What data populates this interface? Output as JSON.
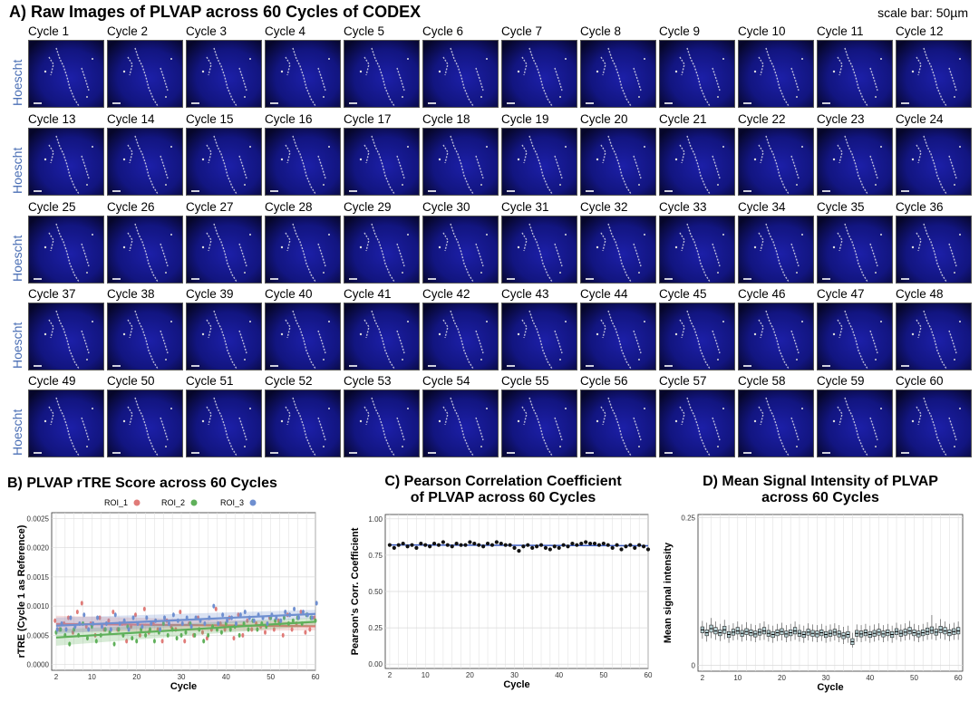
{
  "figure": {
    "panel_a_title": "A) Raw Images of PLVAP across 60 Cycles of CODEX",
    "scale_bar_note": "scale bar: 50µm",
    "row_label": "Hoescht",
    "cycle_label_prefix": "Cycle",
    "cycle_count": 60
  },
  "chart_data": [
    {
      "id": "B",
      "type": "scatter",
      "title": "B)  PLVAP rTRE Score across 60 Cycles",
      "xlabel": "Cycle",
      "ylabel": "rTRE (Cycle 1 as Reference)",
      "xlim": [
        1,
        60
      ],
      "ylim": [
        -0.0001,
        0.0026
      ],
      "xticks": [
        2,
        10,
        20,
        30,
        40,
        50,
        60
      ],
      "yticks": [
        0.0,
        0.0005,
        0.001,
        0.0015,
        0.002,
        0.0025
      ],
      "ytick_labels": [
        "0.0000",
        "0.0005",
        "0.0010",
        "0.0015",
        "0.0020",
        "0.0025"
      ],
      "grid": true,
      "legend_position": "top",
      "colors": {
        "ROI_1": "#e07b78",
        "ROI_2": "#5fb05a",
        "ROI_3": "#6f8fd0"
      },
      "series": [
        {
          "name": "ROI_1",
          "x": [
            2,
            3,
            4,
            5,
            6,
            7,
            8,
            9,
            10,
            11,
            12,
            13,
            14,
            15,
            16,
            17,
            18,
            19,
            20,
            21,
            22,
            23,
            24,
            25,
            26,
            27,
            28,
            29,
            30,
            31,
            32,
            33,
            34,
            35,
            36,
            37,
            38,
            39,
            40,
            41,
            42,
            43,
            44,
            45,
            46,
            47,
            48,
            49,
            50,
            51,
            52,
            53,
            54,
            55,
            56,
            57,
            58,
            59,
            60
          ],
          "y": [
            0.00075,
            0.0006,
            0.0007,
            0.0008,
            0.00055,
            0.0009,
            0.00105,
            0.00065,
            0.0007,
            0.0005,
            0.0008,
            0.0006,
            0.00075,
            0.0009,
            0.0006,
            0.0007,
            0.0004,
            0.00065,
            0.00085,
            0.0005,
            0.00095,
            0.00055,
            0.0007,
            0.0006,
            0.0004,
            0.00075,
            0.00065,
            0.0006,
            0.0009,
            0.0004,
            0.0007,
            0.0005,
            0.0008,
            0.00055,
            0.00045,
            0.0006,
            0.00095,
            0.0007,
            0.0006,
            0.0008,
            0.00045,
            0.00085,
            0.0005,
            0.00075,
            0.0006,
            0.0007,
            0.00065,
            0.00055,
            0.0008,
            0.0006,
            0.00075,
            0.0005,
            0.00085,
            0.0006,
            0.0007,
            0.0009,
            0.00055,
            0.0006,
            0.0008
          ]
        },
        {
          "name": "ROI_2",
          "x": [
            2,
            3,
            4,
            5,
            6,
            7,
            8,
            9,
            10,
            11,
            12,
            13,
            14,
            15,
            16,
            17,
            18,
            19,
            20,
            21,
            22,
            23,
            24,
            25,
            26,
            27,
            28,
            29,
            30,
            31,
            32,
            33,
            34,
            35,
            36,
            37,
            38,
            39,
            40,
            41,
            42,
            43,
            44,
            45,
            46,
            47,
            48,
            49,
            50,
            51,
            52,
            53,
            54,
            55,
            56,
            57,
            58,
            59,
            60
          ],
          "y": [
            0.00055,
            0.0006,
            0.0005,
            0.00035,
            0.0006,
            0.0005,
            0.0007,
            0.00045,
            0.00065,
            0.0004,
            0.0005,
            0.0006,
            0.00055,
            0.00035,
            0.0006,
            0.0005,
            0.00065,
            0.00045,
            0.0004,
            0.0006,
            0.0005,
            0.0006,
            0.0004,
            0.00055,
            0.0007,
            0.0005,
            0.0006,
            0.00045,
            0.0005,
            0.00055,
            0.0007,
            0.0005,
            0.0006,
            0.0004,
            0.0005,
            0.00065,
            0.0006,
            0.00055,
            0.0007,
            0.0006,
            0.00065,
            0.0005,
            0.0007,
            0.0006,
            0.00075,
            0.0006,
            0.0007,
            0.00065,
            0.0008,
            0.00075,
            0.0007,
            0.0008,
            0.0007,
            0.00075,
            0.0008,
            0.0007,
            0.00085,
            0.0008,
            0.00075
          ]
        },
        {
          "name": "ROI_3",
          "x": [
            2,
            3,
            4,
            5,
            6,
            7,
            8,
            9,
            10,
            11,
            12,
            13,
            14,
            15,
            16,
            17,
            18,
            19,
            20,
            21,
            22,
            23,
            24,
            25,
            26,
            27,
            28,
            29,
            30,
            31,
            32,
            33,
            34,
            35,
            36,
            37,
            38,
            39,
            40,
            41,
            42,
            43,
            44,
            45,
            46,
            47,
            48,
            49,
            50,
            51,
            52,
            53,
            54,
            55,
            56,
            57,
            58,
            59,
            60
          ],
          "y": [
            0.0006,
            0.0007,
            0.0006,
            0.0008,
            0.00065,
            0.0007,
            0.00085,
            0.0006,
            0.0007,
            0.0008,
            0.00065,
            0.0007,
            0.0006,
            0.00085,
            0.0007,
            0.00075,
            0.0006,
            0.0008,
            0.0007,
            0.00065,
            0.0008,
            0.0007,
            0.00075,
            0.0006,
            0.0008,
            0.0007,
            0.00085,
            0.00075,
            0.0007,
            0.0008,
            0.00065,
            0.0008,
            0.00075,
            0.0007,
            0.0008,
            0.001,
            0.0007,
            0.00085,
            0.00075,
            0.0008,
            0.0007,
            0.00085,
            0.0009,
            0.0008,
            0.00075,
            0.00085,
            0.0008,
            0.0007,
            0.00085,
            0.0008,
            0.00075,
            0.0009,
            0.00085,
            0.00095,
            0.0008,
            0.0009,
            0.00085,
            0.0008,
            0.00105
          ]
        }
      ]
    },
    {
      "id": "C",
      "type": "scatter",
      "title": "C)    Pearson Correlation Coefficient of PLVAP across 60 Cycles",
      "title_lines": [
        "C)    Pearson Correlation Coefficient",
        "of PLVAP across 60 Cycles"
      ],
      "xlabel": "Cycle",
      "ylabel": "Pearson's Corr. Coefficient",
      "xlim": [
        1,
        60
      ],
      "ylim": [
        -0.03,
        1.03
      ],
      "xticks": [
        2,
        10,
        20,
        30,
        40,
        50,
        60
      ],
      "yticks": [
        0.0,
        0.25,
        0.5,
        0.75,
        1.0
      ],
      "ytick_labels": [
        "0.00",
        "0.25",
        "0.50",
        "0.75",
        "1.00"
      ],
      "grid": true,
      "colors": {
        "points": "#111111",
        "trend": "#3b5bbf"
      },
      "series": [
        {
          "name": "",
          "x": [
            2,
            3,
            4,
            5,
            6,
            7,
            8,
            9,
            10,
            11,
            12,
            13,
            14,
            15,
            16,
            17,
            18,
            19,
            20,
            21,
            22,
            23,
            24,
            25,
            26,
            27,
            28,
            29,
            30,
            31,
            32,
            33,
            34,
            35,
            36,
            37,
            38,
            39,
            40,
            41,
            42,
            43,
            44,
            45,
            46,
            47,
            48,
            49,
            50,
            51,
            52,
            53,
            54,
            55,
            56,
            57,
            58,
            59,
            60
          ],
          "y": [
            0.82,
            0.8,
            0.82,
            0.83,
            0.81,
            0.82,
            0.8,
            0.83,
            0.82,
            0.81,
            0.83,
            0.82,
            0.84,
            0.82,
            0.81,
            0.83,
            0.82,
            0.82,
            0.84,
            0.83,
            0.82,
            0.81,
            0.83,
            0.82,
            0.84,
            0.83,
            0.82,
            0.82,
            0.8,
            0.78,
            0.81,
            0.82,
            0.8,
            0.81,
            0.82,
            0.8,
            0.79,
            0.81,
            0.8,
            0.82,
            0.81,
            0.83,
            0.82,
            0.83,
            0.84,
            0.83,
            0.83,
            0.82,
            0.83,
            0.82,
            0.8,
            0.82,
            0.79,
            0.81,
            0.82,
            0.8,
            0.82,
            0.81,
            0.79
          ]
        }
      ],
      "trend": {
        "x": [
          2,
          60
        ],
        "y": [
          0.82,
          0.815
        ]
      }
    },
    {
      "id": "D",
      "type": "box",
      "title": "D)  Mean Signal Intensity of PLVAP across 60 Cycles",
      "title_lines": [
        "D)  Mean Signal Intensity of PLVAP",
        "across 60 Cycles"
      ],
      "xlabel": "Cycle",
      "ylabel": "Mean signal intensity",
      "xlim": [
        1,
        61
      ],
      "ylim": [
        -0.01,
        0.255
      ],
      "xticks": [
        2,
        10,
        20,
        30,
        40,
        50,
        60
      ],
      "yticks": [
        0,
        0.25
      ],
      "ytick_labels": [
        "0",
        "0.25"
      ],
      "grid": true,
      "colors": {
        "box_fill": "#b9d3d6",
        "box_line": "#222222"
      },
      "series": [
        {
          "name": "",
          "x": [
            2,
            3,
            4,
            5,
            6,
            7,
            8,
            9,
            10,
            11,
            12,
            13,
            14,
            15,
            16,
            17,
            18,
            19,
            20,
            21,
            22,
            23,
            24,
            25,
            26,
            27,
            28,
            29,
            30,
            31,
            32,
            33,
            34,
            35,
            36,
            37,
            38,
            39,
            40,
            41,
            42,
            43,
            44,
            45,
            46,
            47,
            48,
            49,
            50,
            51,
            52,
            53,
            54,
            55,
            56,
            57,
            58,
            59,
            60
          ],
          "median": [
            0.06,
            0.055,
            0.062,
            0.058,
            0.055,
            0.06,
            0.052,
            0.056,
            0.058,
            0.054,
            0.057,
            0.055,
            0.053,
            0.056,
            0.058,
            0.054,
            0.052,
            0.055,
            0.057,
            0.053,
            0.055,
            0.058,
            0.054,
            0.052,
            0.056,
            0.054,
            0.053,
            0.055,
            0.052,
            0.054,
            0.056,
            0.053,
            0.05,
            0.052,
            0.04,
            0.054,
            0.053,
            0.055,
            0.052,
            0.054,
            0.056,
            0.053,
            0.055,
            0.052,
            0.057,
            0.054,
            0.056,
            0.058,
            0.055,
            0.053,
            0.055,
            0.057,
            0.059,
            0.056,
            0.06,
            0.058,
            0.055,
            0.057,
            0.058
          ],
          "q1": [
            0.055,
            0.05,
            0.056,
            0.053,
            0.05,
            0.054,
            0.047,
            0.051,
            0.053,
            0.049,
            0.052,
            0.05,
            0.048,
            0.051,
            0.053,
            0.049,
            0.047,
            0.05,
            0.052,
            0.048,
            0.05,
            0.053,
            0.049,
            0.047,
            0.051,
            0.049,
            0.048,
            0.05,
            0.047,
            0.049,
            0.051,
            0.048,
            0.045,
            0.047,
            0.035,
            0.049,
            0.048,
            0.05,
            0.047,
            0.049,
            0.051,
            0.048,
            0.05,
            0.047,
            0.052,
            0.049,
            0.051,
            0.053,
            0.05,
            0.048,
            0.05,
            0.052,
            0.054,
            0.051,
            0.055,
            0.053,
            0.05,
            0.052,
            0.053
          ],
          "q3": [
            0.065,
            0.06,
            0.068,
            0.064,
            0.06,
            0.066,
            0.057,
            0.061,
            0.064,
            0.059,
            0.062,
            0.06,
            0.058,
            0.061,
            0.064,
            0.059,
            0.057,
            0.06,
            0.062,
            0.058,
            0.06,
            0.064,
            0.059,
            0.057,
            0.061,
            0.059,
            0.058,
            0.06,
            0.057,
            0.059,
            0.061,
            0.058,
            0.055,
            0.057,
            0.045,
            0.059,
            0.058,
            0.06,
            0.057,
            0.059,
            0.061,
            0.058,
            0.06,
            0.057,
            0.062,
            0.059,
            0.061,
            0.064,
            0.06,
            0.058,
            0.06,
            0.063,
            0.065,
            0.061,
            0.066,
            0.064,
            0.06,
            0.062,
            0.064
          ],
          "low": [
            0.045,
            0.04,
            0.046,
            0.043,
            0.041,
            0.044,
            0.038,
            0.042,
            0.043,
            0.04,
            0.042,
            0.041,
            0.039,
            0.042,
            0.043,
            0.04,
            0.038,
            0.041,
            0.042,
            0.039,
            0.041,
            0.043,
            0.04,
            0.038,
            0.042,
            0.04,
            0.039,
            0.041,
            0.038,
            0.04,
            0.042,
            0.039,
            0.036,
            0.038,
            0.03,
            0.04,
            0.039,
            0.041,
            0.038,
            0.04,
            0.042,
            0.039,
            0.041,
            0.038,
            0.043,
            0.04,
            0.042,
            0.043,
            0.041,
            0.039,
            0.041,
            0.043,
            0.044,
            0.042,
            0.045,
            0.043,
            0.041,
            0.043,
            0.043
          ],
          "high": [
            0.075,
            0.072,
            0.08,
            0.074,
            0.07,
            0.077,
            0.068,
            0.071,
            0.074,
            0.069,
            0.073,
            0.07,
            0.068,
            0.071,
            0.074,
            0.069,
            0.067,
            0.07,
            0.072,
            0.068,
            0.07,
            0.074,
            0.069,
            0.067,
            0.071,
            0.069,
            0.068,
            0.07,
            0.067,
            0.069,
            0.071,
            0.068,
            0.065,
            0.067,
            0.055,
            0.069,
            0.068,
            0.07,
            0.067,
            0.069,
            0.071,
            0.068,
            0.07,
            0.067,
            0.072,
            0.069,
            0.071,
            0.075,
            0.07,
            0.068,
            0.07,
            0.073,
            0.085,
            0.071,
            0.078,
            0.074,
            0.07,
            0.072,
            0.074
          ]
        }
      ]
    }
  ]
}
